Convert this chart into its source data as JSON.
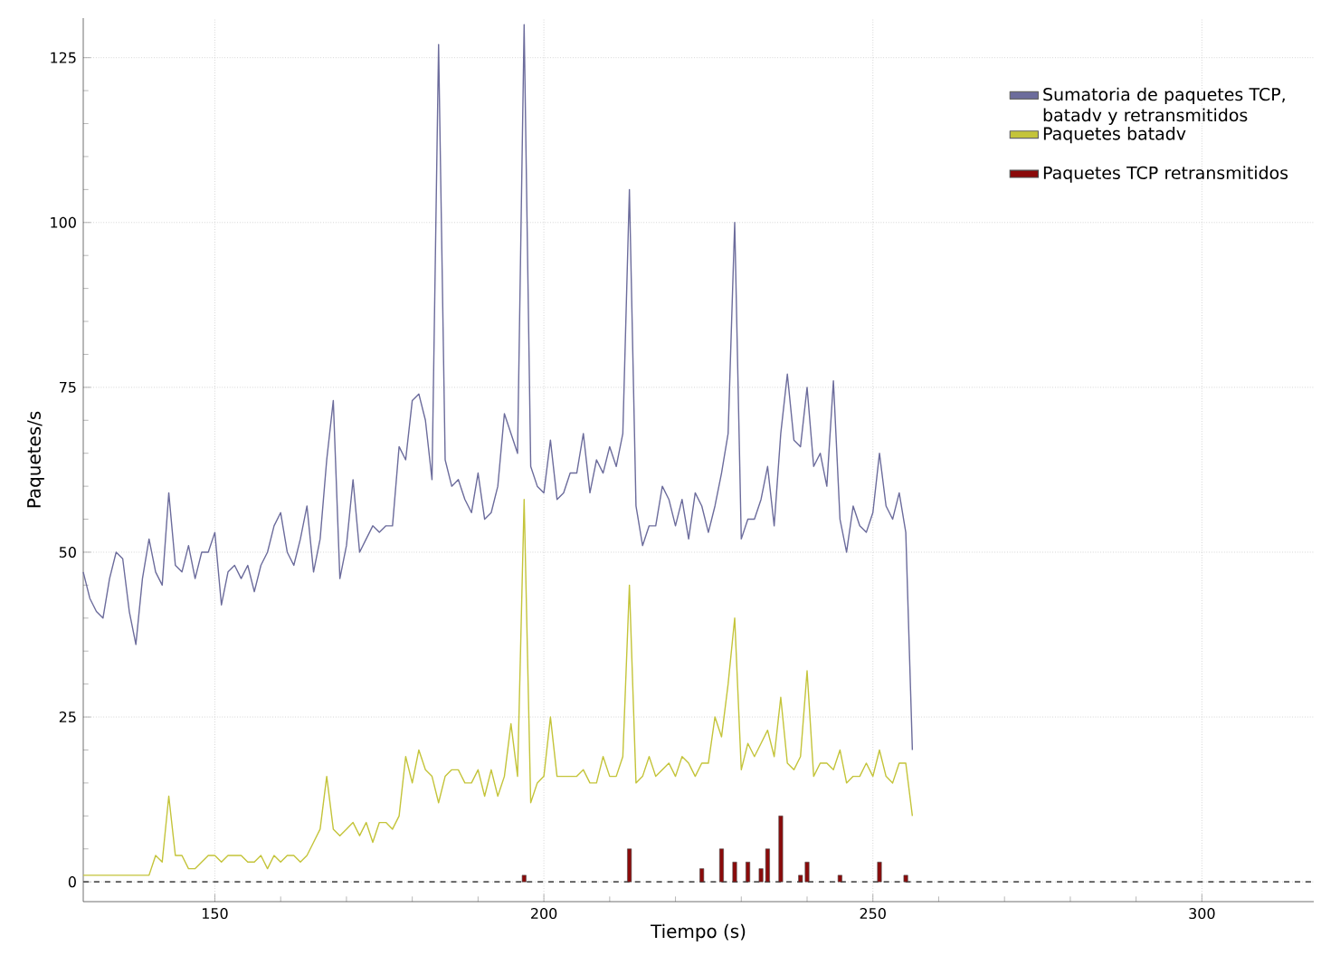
{
  "chart_data": {
    "type": "line",
    "xlabel": "Tiempo (s)",
    "ylabel": "Paquetes/s",
    "xlim": [
      130,
      317
    ],
    "ylim": [
      -3,
      131
    ],
    "xticks": [
      150,
      200,
      250,
      300
    ],
    "yticks": [
      0,
      25,
      50,
      75,
      100,
      125
    ],
    "grid": true,
    "legend": "top right",
    "marker": "none",
    "line_style": "solid",
    "ref_lines": [
      {
        "axis": "y",
        "value": 0,
        "color": "#555555",
        "line_style": "dashed"
      }
    ],
    "series": [
      {
        "name": "Sumatoria de paquetes TCP, batadv y retransmitidos",
        "color": "#6c6c9c",
        "x": [
          130,
          131,
          132,
          133,
          134,
          135,
          136,
          137,
          138,
          139,
          140,
          141,
          142,
          143,
          144,
          145,
          146,
          147,
          148,
          149,
          150,
          151,
          152,
          153,
          154,
          155,
          156,
          157,
          158,
          159,
          160,
          161,
          162,
          163,
          164,
          165,
          166,
          167,
          168,
          169,
          170,
          171,
          172,
          173,
          174,
          175,
          176,
          177,
          178,
          179,
          180,
          181,
          182,
          183,
          184,
          185,
          186,
          187,
          188,
          189,
          190,
          191,
          192,
          193,
          194,
          195,
          196,
          197,
          198,
          199,
          200,
          201,
          202,
          203,
          204,
          205,
          206,
          207,
          208,
          209,
          210,
          211,
          212,
          213,
          214,
          215,
          216,
          217,
          218,
          219,
          220,
          221,
          222,
          223,
          224,
          225,
          226,
          227,
          228,
          229,
          230,
          231,
          232,
          233,
          234,
          235,
          236,
          237,
          238,
          239,
          240,
          241,
          242,
          243,
          244,
          245,
          246,
          247,
          248,
          249,
          250,
          251,
          252,
          253,
          254,
          255,
          256
        ],
        "values": [
          47,
          43,
          41,
          40,
          46,
          50,
          49,
          41,
          36,
          46,
          52,
          47,
          45,
          59,
          48,
          47,
          51,
          46,
          50,
          50,
          53,
          42,
          47,
          48,
          46,
          48,
          44,
          48,
          50,
          54,
          56,
          50,
          48,
          52,
          57,
          47,
          52,
          64,
          73,
          46,
          51,
          61,
          50,
          52,
          54,
          53,
          54,
          54,
          66,
          64,
          73,
          74,
          70,
          61,
          127,
          64,
          60,
          61,
          58,
          56,
          62,
          55,
          56,
          60,
          71,
          68,
          65,
          130,
          63,
          60,
          59,
          67,
          58,
          59,
          62,
          62,
          68,
          59,
          64,
          62,
          66,
          63,
          68,
          105,
          57,
          51,
          54,
          54,
          60,
          58,
          54,
          58,
          52,
          59,
          57,
          53,
          57,
          62,
          68,
          100,
          52,
          55,
          55,
          58,
          63,
          54,
          68,
          77,
          67,
          66,
          75,
          63,
          65,
          60,
          76,
          55,
          50,
          57,
          54,
          53,
          56,
          65,
          57,
          55,
          59,
          53,
          20
        ]
      },
      {
        "name": "Paquetes batadv",
        "color": "#c4c43a",
        "x": [
          130,
          131,
          132,
          133,
          134,
          135,
          136,
          137,
          138,
          139,
          140,
          141,
          142,
          143,
          144,
          145,
          146,
          147,
          148,
          149,
          150,
          151,
          152,
          153,
          154,
          155,
          156,
          157,
          158,
          159,
          160,
          161,
          162,
          163,
          164,
          165,
          166,
          167,
          168,
          169,
          170,
          171,
          172,
          173,
          174,
          175,
          176,
          177,
          178,
          179,
          180,
          181,
          182,
          183,
          184,
          185,
          186,
          187,
          188,
          189,
          190,
          191,
          192,
          193,
          194,
          195,
          196,
          197,
          198,
          199,
          200,
          201,
          202,
          203,
          204,
          205,
          206,
          207,
          208,
          209,
          210,
          211,
          212,
          213,
          214,
          215,
          216,
          217,
          218,
          219,
          220,
          221,
          222,
          223,
          224,
          225,
          226,
          227,
          228,
          229,
          230,
          231,
          232,
          233,
          234,
          235,
          236,
          237,
          238,
          239,
          240,
          241,
          242,
          243,
          244,
          245,
          246,
          247,
          248,
          249,
          250,
          251,
          252,
          253,
          254,
          255,
          256
        ],
        "values": [
          1,
          1,
          1,
          1,
          1,
          1,
          1,
          1,
          1,
          1,
          1,
          4,
          3,
          13,
          4,
          4,
          2,
          2,
          3,
          4,
          4,
          3,
          4,
          4,
          4,
          3,
          3,
          4,
          2,
          4,
          3,
          4,
          4,
          3,
          4,
          6,
          8,
          16,
          8,
          7,
          8,
          9,
          7,
          9,
          6,
          9,
          9,
          8,
          10,
          19,
          15,
          20,
          17,
          16,
          12,
          16,
          17,
          17,
          15,
          15,
          17,
          13,
          17,
          13,
          16,
          24,
          16,
          58,
          12,
          15,
          16,
          25,
          16,
          16,
          16,
          16,
          17,
          15,
          15,
          19,
          16,
          16,
          19,
          45,
          15,
          16,
          19,
          16,
          17,
          18,
          16,
          19,
          18,
          16,
          18,
          18,
          25,
          22,
          30,
          40,
          17,
          21,
          19,
          21,
          23,
          19,
          28,
          18,
          17,
          19,
          32,
          16,
          18,
          18,
          17,
          20,
          15,
          16,
          16,
          18,
          16,
          20,
          16,
          15,
          18,
          18,
          10
        ]
      },
      {
        "name": "Paquetes TCP retransmitidos",
        "type": "bar",
        "color": "#8b0a0a",
        "x": [
          197,
          213,
          224,
          227,
          229,
          231,
          233,
          234,
          236,
          239,
          240,
          245,
          251,
          255
        ],
        "values": [
          1,
          5,
          2,
          5,
          3,
          3,
          2,
          5,
          10,
          1,
          3,
          1,
          3,
          1
        ]
      }
    ]
  }
}
